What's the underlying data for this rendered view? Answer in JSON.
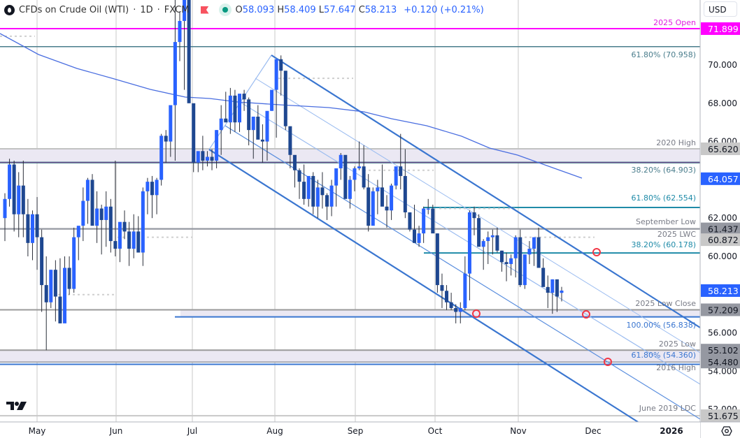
{
  "header": {
    "symbol_title": "CFDs on Crude Oil (WTI)",
    "sep1": "·",
    "interval": "1D",
    "sep2": "·",
    "exchange": "FXCM",
    "open_label": "O",
    "open": "58.093",
    "high_label": "H",
    "high": "58.409",
    "low_label": "L",
    "low": "57.647",
    "close_label": "C",
    "close": "58.213",
    "change": "+0.120 (+0.21%)"
  },
  "price_axis": {
    "currency": "USD",
    "ticks": [
      "70.000",
      "68.000",
      "66.000",
      "62.000",
      "60.000",
      "56.000",
      "54.000",
      "52.000"
    ]
  },
  "colors": {
    "up": "#2962ff",
    "down": "#1e4790",
    "magenta": "#ff00ff",
    "fib_teal": "#4a7d8c",
    "fib_cyan": "#1f8ba8",
    "gray_level": "#9598a1",
    "zone_fill": "#ebe8f3",
    "channel": "#3a76d0",
    "channel_light": "#9bbcf0",
    "ma": "#4a6ee0",
    "marker": "#f23645"
  },
  "chart_data": {
    "type": "candlestick",
    "title": "CFDs on Crude Oil (WTI) · 1D · FXCM",
    "xlabel": "",
    "ylabel": "USD",
    "ylim": [
      51.0,
      72.8
    ],
    "x_ticks": [
      "May",
      "Jun",
      "Jul",
      "Aug",
      "Sep",
      "Oct",
      "Nov",
      "Dec",
      "2026"
    ],
    "last": {
      "open": 58.093,
      "high": 58.409,
      "low": 57.647,
      "close": 58.213,
      "change": 0.12,
      "change_pct": 0.21
    },
    "levels": [
      {
        "label": "2025 Open",
        "price": 71.899,
        "badge": "71.899",
        "style": "magenta"
      },
      {
        "label": "61.80% (70.958)",
        "price": 70.958,
        "style": "fib-teal"
      },
      {
        "label": "2020 High",
        "price": 65.62,
        "badge": "65.620",
        "style": "gray"
      },
      {
        "label": "38.20% (64.903)",
        "price": 64.903,
        "style": "fib-teal"
      },
      {
        "label": "61.80% (62.554)",
        "price": 62.554,
        "style": "fib-cyan"
      },
      {
        "label": "September Low",
        "price": 61.437,
        "badge": "61.437",
        "style": "gray"
      },
      {
        "label": "2025 LWC",
        "price": 60.872,
        "badge": "60.872",
        "style": "gray-light"
      },
      {
        "label": "38.20% (60.178)",
        "price": 60.178,
        "style": "fib-cyan"
      },
      {
        "label": "2025 Low Close",
        "price": 57.209,
        "badge": "57.209",
        "style": "gray"
      },
      {
        "label": "100.00% (56.838)",
        "price": 56.838,
        "style": "blue"
      },
      {
        "label": "2025 Low",
        "price": 55.102,
        "badge": "55.102",
        "style": "gray"
      },
      {
        "label": "61.80% (54.360)",
        "price": 54.36,
        "style": "blue"
      },
      {
        "label": "2016 High",
        "price": 54.48,
        "badge": "54.480",
        "style": "gray"
      },
      {
        "label": "June 2019 LDC",
        "price": 51.675,
        "badge": "51.675",
        "style": "gray-light"
      }
    ],
    "price_badges": [
      {
        "price": 71.899,
        "text": "71.899",
        "bg": "#ff00ff",
        "fg": "#ffffff"
      },
      {
        "price": 65.62,
        "text": "65.620",
        "bg": "#c8c8c8",
        "fg": "#131722"
      },
      {
        "price": 64.057,
        "text": "64.057",
        "bg": "#2962ff",
        "fg": "#ffffff",
        "note": "moving average"
      },
      {
        "price": 61.437,
        "text": "61.437",
        "bg": "#9598a1",
        "fg": "#131722"
      },
      {
        "price": 60.872,
        "text": "60.872",
        "bg": "#c8c8c8",
        "fg": "#131722"
      },
      {
        "price": 58.213,
        "text": "58.213",
        "bg": "#2962ff",
        "fg": "#ffffff",
        "note": "last price"
      },
      {
        "price": 57.209,
        "text": "57.209",
        "bg": "#9598a1",
        "fg": "#131722"
      },
      {
        "price": 55.102,
        "text": "55.102",
        "bg": "#9598a1",
        "fg": "#131722"
      },
      {
        "price": 54.48,
        "text": "54.480",
        "bg": "#9598a1",
        "fg": "#131722"
      },
      {
        "price": 51.675,
        "text": "51.675",
        "bg": "#c8c8c8",
        "fg": "#131722"
      }
    ],
    "candles_approx": [
      [
        62.0,
        63.3,
        60.8,
        63.0
      ],
      [
        63.0,
        65.1,
        62.6,
        64.8
      ],
      [
        64.8,
        65.0,
        61.3,
        62.2
      ],
      [
        62.2,
        64.4,
        61.0,
        63.7
      ],
      [
        63.7,
        65.0,
        61.0,
        62.2
      ],
      [
        62.2,
        63.0,
        60.0,
        60.7
      ],
      [
        60.7,
        62.4,
        59.8,
        62.2
      ],
      [
        62.2,
        63.1,
        59.3,
        61.0
      ],
      [
        61.0,
        61.4,
        57.1,
        58.5
      ],
      [
        58.5,
        60.0,
        55.1,
        57.6
      ],
      [
        57.6,
        59.3,
        57.3,
        59.3
      ],
      [
        59.3,
        59.8,
        56.6,
        57.9
      ],
      [
        57.9,
        59.9,
        56.5,
        56.5
      ],
      [
        56.5,
        60.0,
        57.3,
        59.4
      ],
      [
        59.4,
        60.0,
        58.0,
        58.3
      ],
      [
        58.3,
        61.5,
        58.1,
        61.0
      ],
      [
        61.0,
        61.1,
        59.8,
        61.6
      ],
      [
        61.6,
        63.6,
        60.8,
        62.9
      ],
      [
        62.9,
        64.1,
        61.7,
        64.0
      ],
      [
        64.0,
        64.3,
        62.0,
        61.6
      ],
      [
        61.6,
        63.4,
        60.7,
        62.5
      ],
      [
        62.5,
        62.7,
        60.1,
        61.9
      ],
      [
        61.9,
        63.4,
        60.5,
        62.6
      ],
      [
        62.6,
        63.0,
        60.2,
        60.8
      ],
      [
        60.8,
        65.0,
        60.0,
        60.4
      ],
      [
        60.4,
        61.2,
        59.7,
        61.8
      ],
      [
        61.8,
        62.4,
        60.9,
        61.3
      ],
      [
        61.3,
        61.8,
        59.5,
        60.4
      ],
      [
        60.4,
        62.2,
        59.9,
        61.3
      ],
      [
        61.3,
        62.1,
        60.2,
        60.2
      ],
      [
        60.2,
        63.6,
        59.5,
        63.4
      ],
      [
        63.4,
        64.1,
        62.2,
        63.9
      ],
      [
        63.9,
        64.2,
        62.0,
        63.2
      ],
      [
        63.2,
        64.1,
        62.2,
        64.0
      ],
      [
        64.0,
        66.4,
        63.7,
        66.3
      ],
      [
        66.3,
        66.6,
        64.9,
        66.0
      ],
      [
        66.0,
        67.8,
        65.2,
        67.9
      ],
      [
        67.9,
        73.8,
        65.0,
        71.2
      ],
      [
        71.2,
        72.8,
        70.2,
        72.3
      ],
      [
        72.3,
        73.5,
        68.7,
        73.5
      ],
      [
        73.5,
        74.2,
        69.0,
        68.0
      ],
      [
        68.0,
        67.3,
        64.4,
        64.9
      ],
      [
        64.9,
        65.4,
        64.4,
        65.5
      ],
      [
        65.5,
        66.3,
        64.5,
        65.0
      ],
      [
        65.0,
        65.5,
        64.7,
        65.2
      ],
      [
        65.2,
        65.6,
        64.5,
        65.0
      ],
      [
        65.0,
        66.6,
        64.6,
        66.6
      ],
      [
        66.6,
        67.9,
        65.3,
        67.2
      ],
      [
        67.2,
        68.6,
        67.0,
        67.0
      ],
      [
        67.0,
        68.8,
        66.4,
        68.4
      ],
      [
        68.4,
        68.7,
        66.5,
        67.0
      ],
      [
        67.0,
        68.2,
        66.5,
        68.5
      ],
      [
        68.5,
        68.7,
        67.6,
        68.2
      ],
      [
        68.2,
        68.3,
        65.8,
        66.6
      ],
      [
        66.6,
        66.9,
        65.1,
        67.3
      ],
      [
        67.3,
        67.9,
        66.2,
        66.1
      ],
      [
        66.1,
        66.9,
        64.9,
        66.0
      ],
      [
        66.0,
        67.4,
        65.0,
        67.6
      ],
      [
        67.6,
        68.5,
        67.6,
        68.7
      ],
      [
        68.7,
        70.3,
        66.2,
        70.3
      ],
      [
        70.3,
        70.5,
        68.4,
        69.7
      ],
      [
        69.7,
        69.4,
        66.6,
        66.8
      ],
      [
        66.8,
        66.3,
        64.6,
        65.3
      ],
      [
        65.3,
        65.1,
        63.6,
        64.5
      ],
      [
        64.5,
        64.6,
        63.0,
        63.9
      ],
      [
        63.9,
        64.8,
        62.7,
        63.0
      ],
      [
        63.0,
        64.1,
        62.6,
        64.2
      ],
      [
        64.2,
        64.4,
        62.2,
        62.6
      ],
      [
        62.6,
        64.0,
        62.0,
        63.6
      ],
      [
        63.6,
        64.4,
        62.5,
        63.2
      ],
      [
        63.2,
        63.3,
        61.9,
        62.6
      ],
      [
        62.6,
        64.0,
        62.1,
        63.7
      ],
      [
        63.7,
        64.0,
        62.6,
        64.6
      ],
      [
        64.6,
        65.4,
        64.0,
        65.3
      ],
      [
        65.3,
        65.0,
        63.1,
        63.0
      ],
      [
        63.0,
        64.2,
        62.5,
        64.0
      ],
      [
        64.0,
        64.7,
        63.4,
        64.6
      ],
      [
        64.6,
        66.0,
        64.5,
        64.7
      ],
      [
        64.7,
        65.8,
        63.5,
        63.6
      ],
      [
        63.6,
        64.3,
        61.3,
        61.6
      ],
      [
        61.6,
        63.6,
        61.8,
        63.4
      ],
      [
        63.4,
        64.0,
        62.2,
        63.6
      ],
      [
        63.6,
        64.8,
        62.9,
        62.6
      ],
      [
        62.6,
        63.2,
        61.5,
        62.4
      ],
      [
        62.4,
        63.8,
        61.9,
        63.7
      ],
      [
        63.7,
        64.6,
        63.5,
        64.7
      ],
      [
        64.7,
        66.4,
        63.5,
        64.2
      ],
      [
        64.2,
        65.6,
        62.0,
        62.3
      ],
      [
        62.3,
        62.2,
        61.3,
        61.4
      ],
      [
        61.4,
        62.7,
        60.8,
        60.7
      ],
      [
        60.7,
        61.6,
        60.5,
        61.2
      ],
      [
        61.2,
        62.6,
        60.7,
        62.5
      ],
      [
        62.5,
        63.0,
        62.2,
        62.5
      ],
      [
        62.5,
        62.7,
        61.4,
        61.2
      ],
      [
        61.2,
        61.2,
        58.1,
        58.5
      ],
      [
        58.5,
        59.1,
        57.3,
        58.2
      ],
      [
        58.2,
        58.5,
        57.2,
        57.6
      ],
      [
        57.6,
        58.1,
        57.2,
        57.3
      ],
      [
        57.3,
        57.5,
        56.5,
        57.1
      ],
      [
        57.1,
        57.6,
        56.5,
        57.3
      ],
      [
        57.3,
        60.0,
        57.2,
        59.1
      ],
      [
        59.1,
        62.4,
        57.7,
        62.3
      ],
      [
        62.3,
        62.6,
        61.1,
        62.0
      ],
      [
        62.0,
        62.2,
        60.6,
        60.5
      ],
      [
        60.5,
        60.9,
        59.3,
        60.8
      ],
      [
        60.8,
        61.3,
        59.6,
        61.0
      ],
      [
        61.0,
        61.4,
        60.1,
        61.1
      ],
      [
        61.1,
        61.5,
        60.2,
        60.3
      ],
      [
        60.3,
        60.3,
        59.2,
        59.7
      ],
      [
        59.7,
        60.2,
        58.7,
        59.6
      ],
      [
        59.6,
        60.1,
        59.0,
        59.9
      ],
      [
        59.9,
        61.1,
        58.9,
        61.0
      ],
      [
        61.0,
        61.4,
        58.4,
        58.5
      ],
      [
        58.5,
        59.2,
        58.3,
        60.1
      ],
      [
        60.1,
        60.8,
        59.6,
        60.4
      ],
      [
        60.4,
        60.8,
        59.5,
        61.0
      ],
      [
        61.0,
        61.5,
        59.6,
        59.4
      ],
      [
        59.4,
        59.9,
        58.7,
        58.4
      ],
      [
        58.4,
        59.0,
        57.3,
        58.1
      ],
      [
        58.1,
        58.8,
        57.0,
        58.8
      ],
      [
        58.8,
        58.7,
        57.1,
        57.9
      ],
      [
        58.093,
        58.409,
        57.647,
        58.213
      ]
    ],
    "moving_average_note": "long-period moving average descending from ~71.5 (Apr) to ~64.06 (late Nov)",
    "channel_note": "descending pitchfork/channel from late-July high (~70.5) with median, upper and lower parallels; red circle markers at channel/level intersections"
  },
  "footer": {
    "logo": "TV"
  }
}
